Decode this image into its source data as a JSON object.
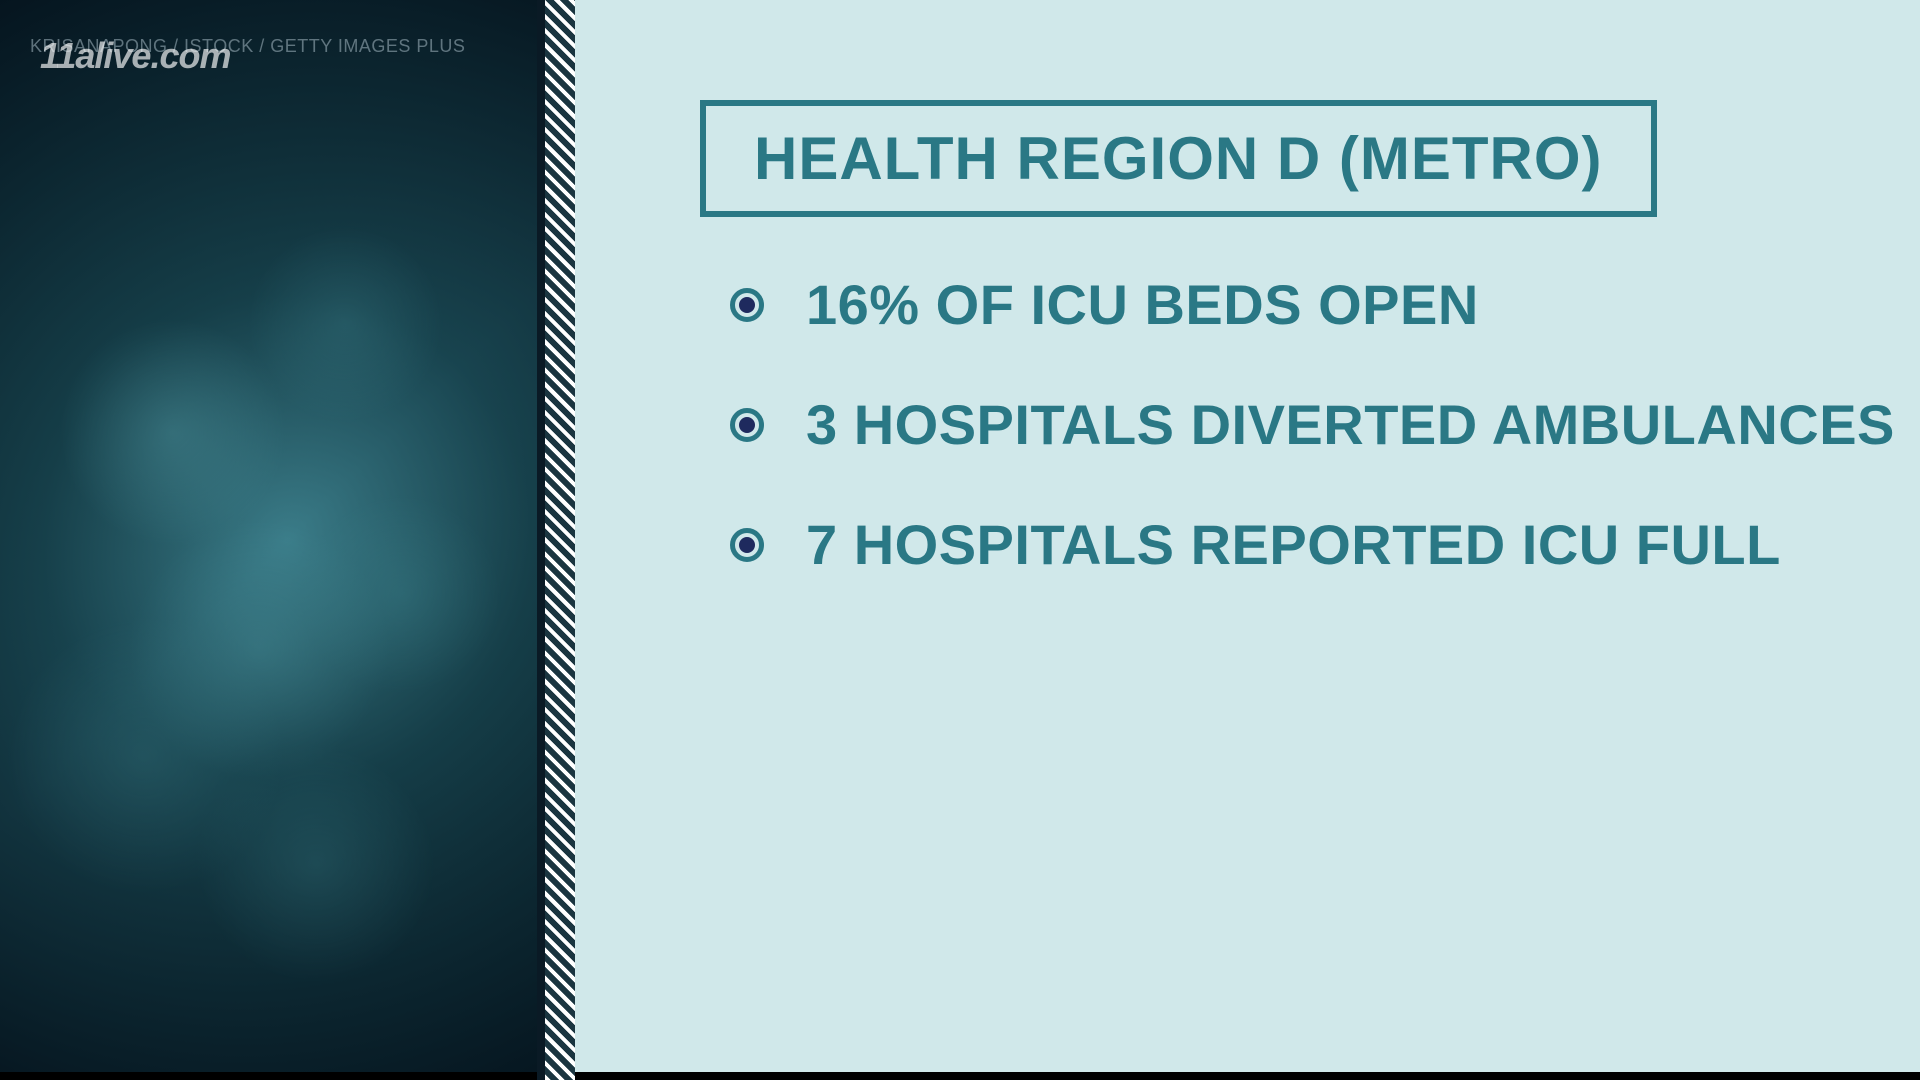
{
  "attribution": "KRISANAPONG / ISTOCK / GETTY IMAGES PLUS",
  "watermark": "11alive.com",
  "title": "HEALTH REGION D (METRO)",
  "bullets": [
    "16% OF ICU BEDS OPEN",
    "3 HOSPITALS DIVERTED AMBULANCES",
    "7 HOSPITALS REPORTED ICU FULL"
  ],
  "colors": {
    "right_bg": "#d0e8ea",
    "title_border": "#2a7885",
    "title_text": "#2a7885",
    "bullet_ring": "#2a7885",
    "bullet_dot": "#1e2a5e",
    "bullet_text": "#2a7885"
  },
  "styling": {
    "title_fontsize": 60,
    "bullet_fontsize": 56,
    "title_border_width": 6,
    "bullet_ring_size": 34,
    "bullet_dot_size": 16
  }
}
